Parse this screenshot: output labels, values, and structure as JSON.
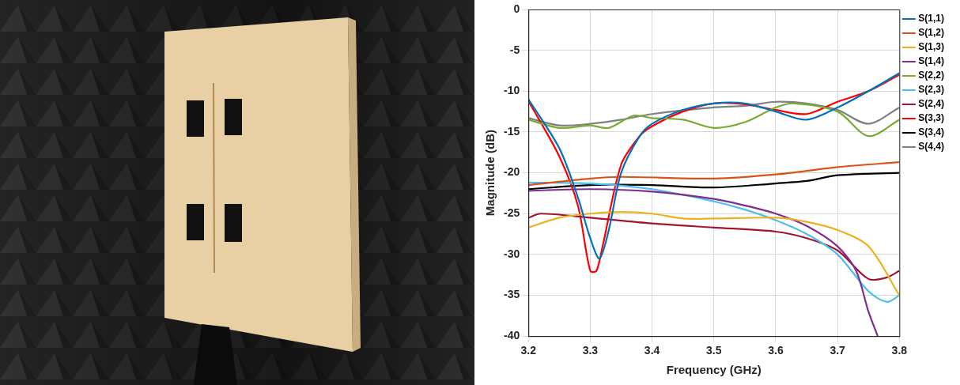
{
  "chart_data": {
    "type": "line",
    "x_label": "Frequency (GHz)",
    "y_label": "Magnitude (dB)",
    "xlim": [
      3.2,
      3.8
    ],
    "xticks": [
      3.2,
      3.3,
      3.4,
      3.5,
      3.6,
      3.7,
      3.8
    ],
    "ylim": [
      -40,
      0
    ],
    "yticks": [
      -40,
      -35,
      -30,
      -25,
      -20,
      -15,
      -10,
      -5,
      0
    ],
    "grid": true,
    "legend": "right",
    "series": [
      {
        "name": "S(1,1)",
        "color": "#0072BD",
        "x": [
          3.2,
          3.25,
          3.28,
          3.3,
          3.315,
          3.33,
          3.35,
          3.38,
          3.4,
          3.45,
          3.5,
          3.55,
          3.6,
          3.65,
          3.7,
          3.75,
          3.8
        ],
        "values": [
          -11,
          -17,
          -23,
          -28,
          -30.5,
          -27,
          -20,
          -15.5,
          -14,
          -12.3,
          -11.5,
          -11.5,
          -12.5,
          -13.5,
          -12,
          -10,
          -7.8
        ]
      },
      {
        "name": "S(1,2)",
        "color": "#D95319",
        "x": [
          3.2,
          3.3,
          3.35,
          3.5,
          3.6,
          3.7,
          3.8
        ],
        "values": [
          -21.5,
          -20.7,
          -20.5,
          -20.7,
          -20.2,
          -19.3,
          -18.7
        ]
      },
      {
        "name": "S(1,3)",
        "color": "#EDB120",
        "x": [
          3.2,
          3.25,
          3.3,
          3.35,
          3.4,
          3.45,
          3.5,
          3.6,
          3.65,
          3.7,
          3.75,
          3.8
        ],
        "values": [
          -26.7,
          -25.5,
          -25,
          -24.8,
          -25,
          -25.6,
          -25.6,
          -25.5,
          -26,
          -27,
          -29,
          -35
        ]
      },
      {
        "name": "S(1,4)",
        "color": "#7E2F8E",
        "x": [
          3.2,
          3.3,
          3.4,
          3.5,
          3.55,
          3.6,
          3.65,
          3.7,
          3.73,
          3.75,
          3.765
        ],
        "values": [
          -22.2,
          -22,
          -22.3,
          -23.2,
          -24,
          -25,
          -26.5,
          -29,
          -32,
          -37,
          -40
        ]
      },
      {
        "name": "S(2,2)",
        "color": "#77AC30",
        "x": [
          3.2,
          3.25,
          3.3,
          3.33,
          3.37,
          3.4,
          3.45,
          3.5,
          3.55,
          3.6,
          3.63,
          3.7,
          3.75,
          3.8
        ],
        "values": [
          -13.5,
          -14.5,
          -14.2,
          -14.5,
          -13,
          -13.3,
          -13.5,
          -14.5,
          -13.8,
          -12,
          -11.5,
          -12.5,
          -15.5,
          -13.5
        ]
      },
      {
        "name": "S(2,3)",
        "color": "#4DBEEE",
        "x": [
          3.2,
          3.3,
          3.4,
          3.5,
          3.55,
          3.6,
          3.65,
          3.7,
          3.75,
          3.78,
          3.8
        ],
        "values": [
          -21.2,
          -21.3,
          -22,
          -23.5,
          -24.5,
          -25.8,
          -27.5,
          -30,
          -34.5,
          -35.8,
          -35
        ]
      },
      {
        "name": "S(2,4)",
        "color": "#A2142F",
        "x": [
          3.2,
          3.22,
          3.3,
          3.4,
          3.5,
          3.6,
          3.65,
          3.7,
          3.75,
          3.78,
          3.8
        ],
        "values": [
          -25.5,
          -25,
          -25.5,
          -26.2,
          -26.7,
          -27.2,
          -28,
          -29.5,
          -33,
          -32.8,
          -32
        ]
      },
      {
        "name": "S(3,3)",
        "color": "#FF0000",
        "x": [
          3.2,
          3.25,
          3.28,
          3.3,
          3.31,
          3.32,
          3.35,
          3.38,
          3.4,
          3.45,
          3.5,
          3.55,
          3.6,
          3.65,
          3.7,
          3.75,
          3.8
        ],
        "values": [
          -11.2,
          -18,
          -24,
          -32,
          -32,
          -29,
          -19,
          -15.5,
          -14.3,
          -12.5,
          -11.5,
          -11.6,
          -12.3,
          -12.8,
          -11.3,
          -10,
          -8
        ]
      },
      {
        "name": "S(3,4)",
        "color": "#000000",
        "x": [
          3.2,
          3.3,
          3.4,
          3.5,
          3.6,
          3.65,
          3.7,
          3.8
        ],
        "values": [
          -22,
          -21.5,
          -21.5,
          -21.8,
          -21.3,
          -21,
          -20.3,
          -20
        ]
      },
      {
        "name": "S(4,4)",
        "color": "#808080",
        "x": [
          3.2,
          3.25,
          3.3,
          3.35,
          3.4,
          3.5,
          3.55,
          3.6,
          3.65,
          3.7,
          3.75,
          3.8
        ],
        "values": [
          -13.3,
          -14.2,
          -14,
          -13.5,
          -12.8,
          -12,
          -11.8,
          -11.3,
          -11.5,
          -12.3,
          -14,
          -12
        ]
      }
    ]
  }
}
